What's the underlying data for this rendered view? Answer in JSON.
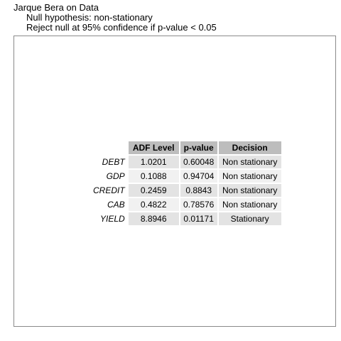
{
  "header": {
    "title": "Jarque Bera on Data",
    "subtitle_1": "Null hypothesis: non-stationary",
    "subtitle_2": "Reject null at 95% confidence if p-value < 0.05"
  },
  "table": {
    "columns": [
      "ADF Level",
      "p-value",
      "Decision"
    ],
    "rows": [
      {
        "label": "DEBT",
        "adf": "1.0201",
        "p": "0.60048",
        "decision": "Non stationary"
      },
      {
        "label": "GDP",
        "adf": "0.1088",
        "p": "0.94704",
        "decision": "Non stationary"
      },
      {
        "label": "CREDIT",
        "adf": "0.2459",
        "p": "0.8843",
        "decision": "Non stationary"
      },
      {
        "label": "CAB",
        "adf": "0.4822",
        "p": "0.78576",
        "decision": "Non stationary"
      },
      {
        "label": "YIELD",
        "adf": "8.8946",
        "p": "0.01171",
        "decision": "Stationary"
      }
    ]
  },
  "colors": {
    "header_fill": "#bdbdbd",
    "row_odd": "#e3e3e3",
    "row_even": "#f1f1f1",
    "panel_border": "#8a8a8a"
  }
}
